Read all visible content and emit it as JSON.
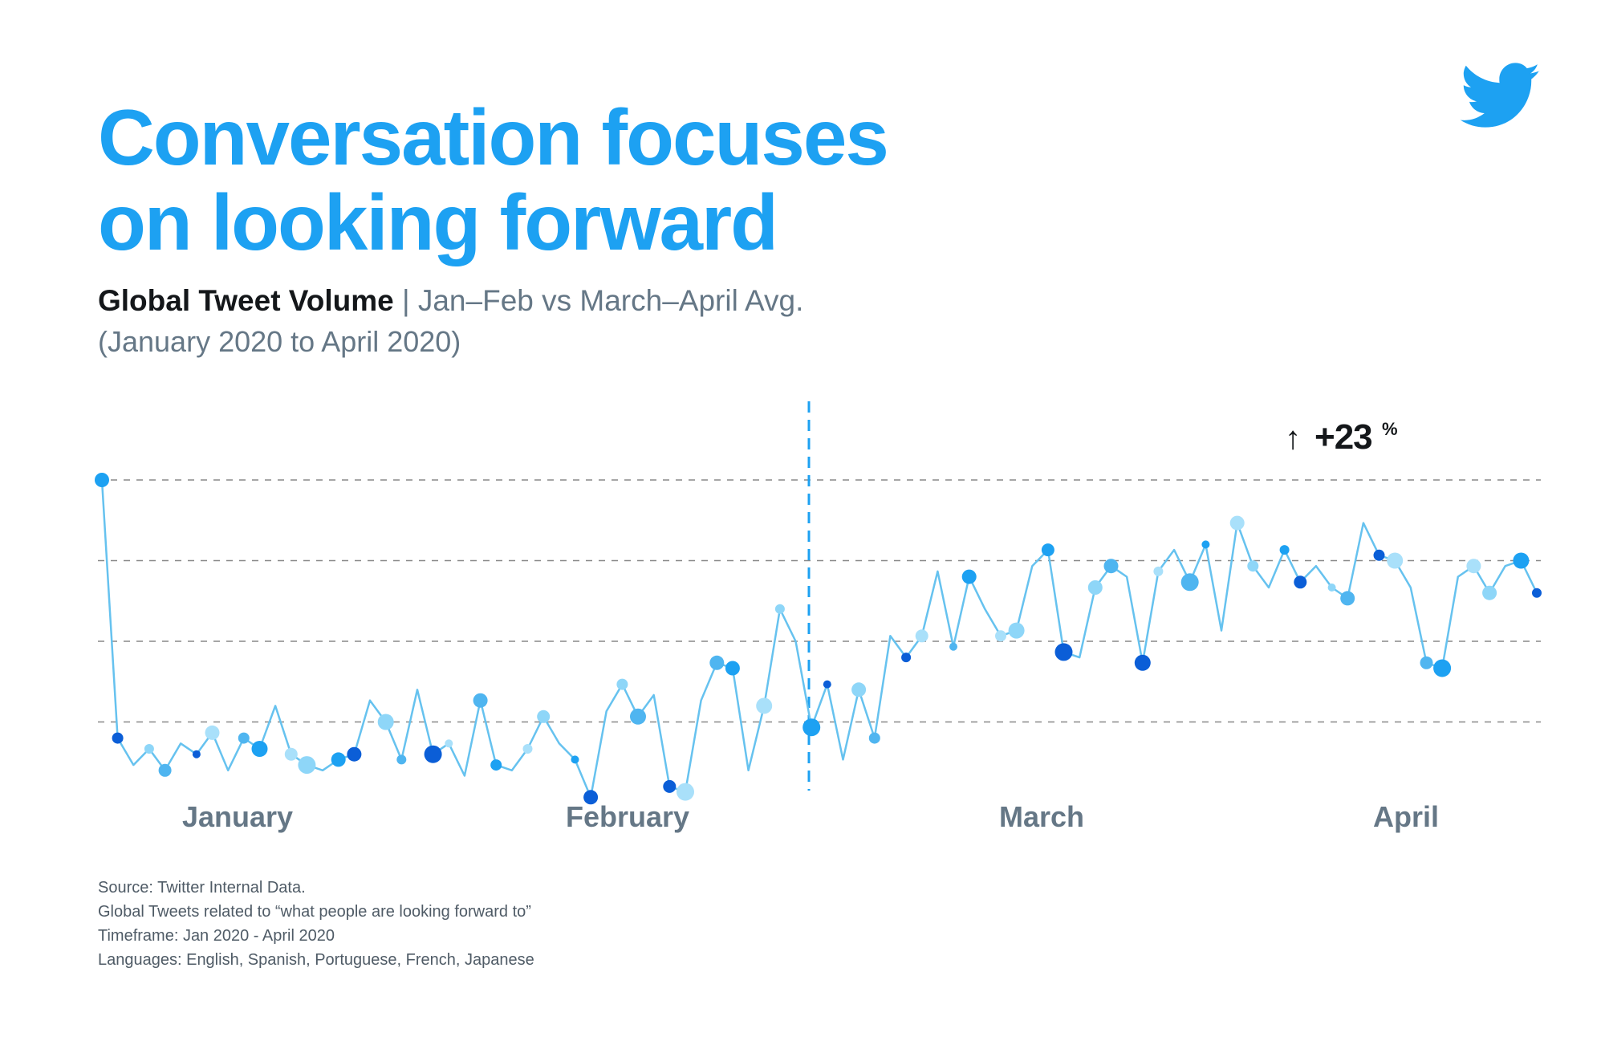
{
  "header": {
    "title_line1": "Conversation focuses",
    "title_line2": "on looking forward",
    "subtitle_bold": "Global Tweet Volume",
    "subtitle_separator": " | ",
    "subtitle_rest": "Jan–Feb vs March–April Avg.",
    "date_range": "(January 2020 to April 2020)"
  },
  "logo": {
    "icon": "twitter-bird-icon",
    "color": "#1da1f2"
  },
  "annotation": {
    "arrow": "↑",
    "value": "+23",
    "unit": "%"
  },
  "footnotes": [
    "Source: Twitter Internal Data.",
    "Global Tweets related to “what people are looking forward to”",
    "Timeframe: Jan 2020 - April 2020",
    "Languages: English, Spanish, Portuguese, French, Japanese"
  ],
  "colors": {
    "accent": "#1da1f2",
    "line": "#66c2ef",
    "dark_point": "#0b5ed7",
    "mid_point": "#1da1f2",
    "light_point": "#8ed6f8",
    "grid": "#888888",
    "axis_label": "#657786"
  },
  "chart_data": {
    "type": "line",
    "title": "Global Tweet Volume",
    "x_labels": [
      "January",
      "February",
      "March",
      "April"
    ],
    "ylim": [
      0,
      3.75
    ],
    "grid": "horizontal dashed",
    "divider": "dashed vertical line between February and March",
    "series": [
      {
        "values": [
          3.0,
          0.6,
          0.35,
          0.5,
          0.3,
          0.55,
          0.45,
          0.65,
          0.3,
          0.6,
          0.5,
          0.9,
          0.45,
          0.35,
          0.3,
          0.4,
          0.45,
          0.95,
          0.75,
          0.4,
          1.05,
          0.45,
          0.55,
          0.25,
          0.95,
          0.35,
          0.3,
          0.5,
          0.8,
          0.55,
          0.4,
          0.05,
          0.85,
          1.1,
          0.8,
          1.0,
          0.15,
          0.1,
          0.95,
          1.3,
          1.25,
          0.3,
          0.9,
          1.8,
          1.5,
          0.7,
          1.1,
          0.4,
          1.05,
          0.6,
          1.55,
          1.35,
          1.55,
          2.15,
          1.45,
          2.1,
          1.8,
          1.55,
          1.6,
          2.2,
          2.35,
          1.4,
          1.35,
          2.0,
          2.2,
          2.1,
          1.3,
          2.15,
          2.35,
          2.05,
          2.4,
          1.6,
          2.6,
          2.2,
          2.0,
          2.35,
          2.05,
          2.2,
          2.0,
          1.9,
          2.6,
          2.3,
          2.25,
          2.0,
          1.3,
          1.25,
          2.1,
          2.2,
          1.95,
          2.2,
          2.25,
          1.95
        ]
      }
    ],
    "annotation": "+23%"
  }
}
